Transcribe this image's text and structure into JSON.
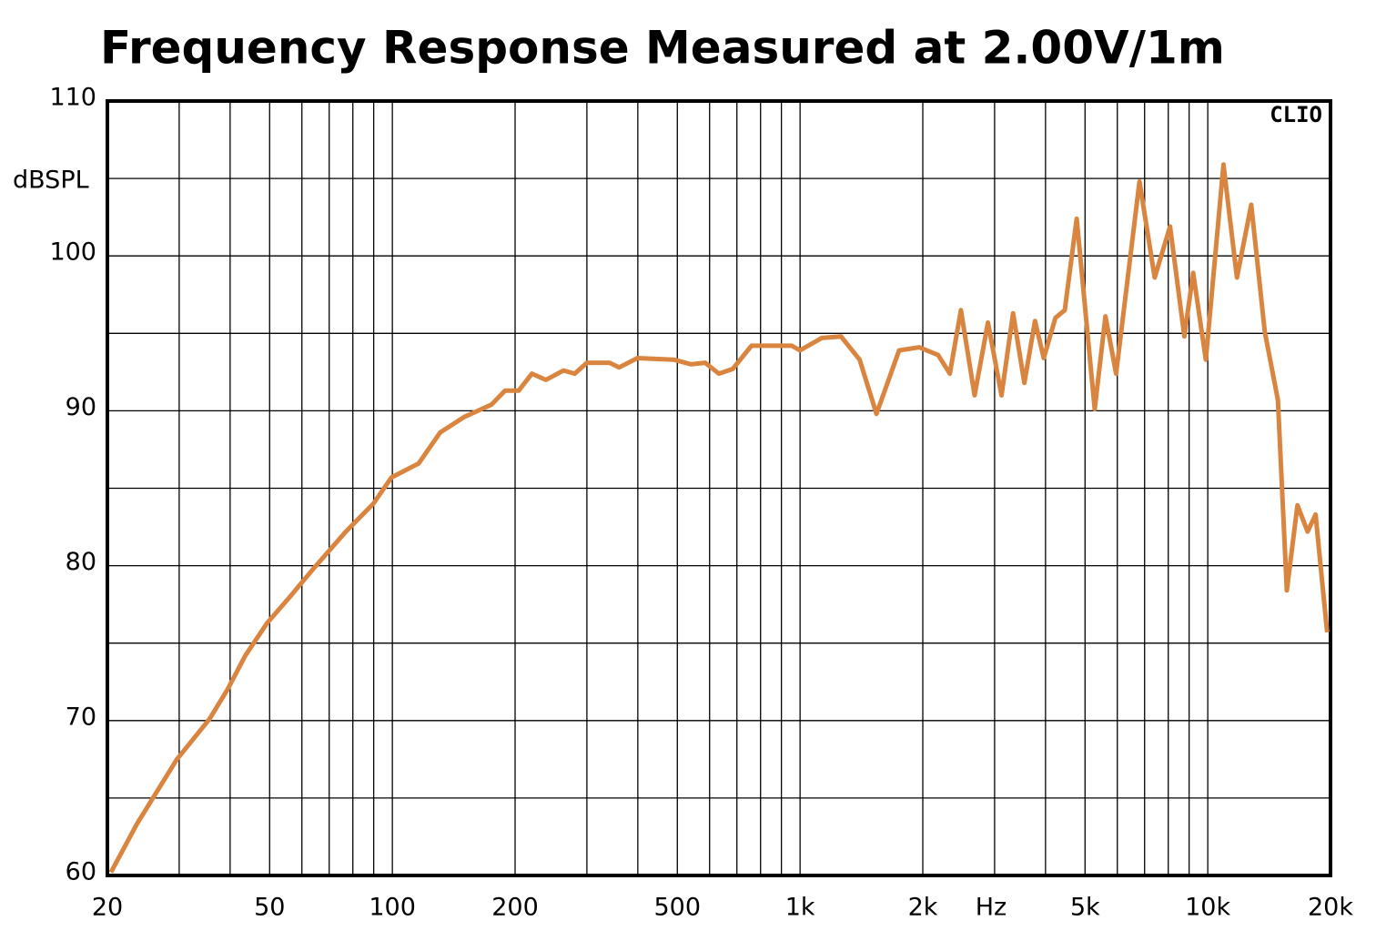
{
  "chart_data": {
    "type": "line",
    "title": "Frequency Response Measured at 2.00V/1m",
    "ylabel": "dBSPL",
    "xlabel": "Hz",
    "annotation": "CLIO",
    "log_x": true,
    "grid": true,
    "xlim": [
      20,
      20000
    ],
    "ylim": [
      60,
      110
    ],
    "xticks": [
      20,
      50,
      100,
      200,
      500,
      {
        "value": 1000,
        "label": "1k"
      },
      {
        "value": 2000,
        "label": "2k"
      },
      {
        "value": 5000,
        "label": "5k"
      },
      {
        "value": 10000,
        "label": "10k"
      },
      {
        "value": 20000,
        "label": "20k"
      }
    ],
    "x_minor_grid": [
      30,
      40,
      60,
      70,
      80,
      90,
      300,
      400,
      600,
      700,
      800,
      900,
      3000,
      4000,
      6000,
      7000,
      8000,
      9000
    ],
    "yticks": [
      60,
      70,
      80,
      90,
      100,
      110
    ],
    "y_minor_grid": [
      65,
      75,
      85,
      95,
      105
    ],
    "series": [
      {
        "color": "#d9843f",
        "x": [
          20.4,
          23.6,
          29.6,
          35.6,
          39.4,
          43.6,
          49.3,
          56.1,
          64,
          76.9,
          89.8,
          99.5,
          116,
          131,
          150,
          175,
          189,
          204,
          220,
          238,
          263,
          280,
          300,
          341,
          360,
          399,
          490,
          540,
          585,
          632,
          684,
          760,
          860,
          954,
          1000,
          1130,
          1260,
          1400,
          1540,
          1750,
          1960,
          2180,
          2330,
          2480,
          2680,
          2890,
          3120,
          3330,
          3550,
          3770,
          3960,
          4230,
          4460,
          4770,
          5280,
          5610,
          5960,
          6800,
          7410,
          8080,
          8760,
          9210,
          9890,
          10930,
          11790,
          12780,
          13800,
          14860,
          15630,
          16600,
          17570,
          18380,
          19620
        ],
        "values": [
          60.2,
          63.3,
          67.5,
          70.1,
          72.0,
          74.2,
          76.3,
          78.0,
          79.8,
          82.2,
          84.0,
          85.7,
          86.6,
          88.6,
          89.6,
          90.4,
          91.3,
          91.3,
          92.4,
          92.0,
          92.6,
          92.4,
          93.1,
          93.1,
          92.8,
          93.4,
          93.3,
          93.0,
          93.1,
          92.4,
          92.7,
          94.2,
          94.2,
          94.2,
          93.9,
          94.7,
          94.8,
          93.3,
          89.8,
          93.9,
          94.1,
          93.6,
          92.4,
          96.5,
          91.0,
          95.7,
          91.0,
          96.3,
          91.8,
          95.8,
          93.4,
          96.0,
          96.5,
          102.4,
          90.1,
          96.1,
          92.4,
          104.8,
          98.6,
          101.9,
          94.8,
          98.9,
          93.3,
          105.9,
          98.6,
          103.3,
          95.1,
          90.7,
          78.4,
          83.9,
          82.2,
          83.3,
          75.7
        ]
      }
    ]
  }
}
